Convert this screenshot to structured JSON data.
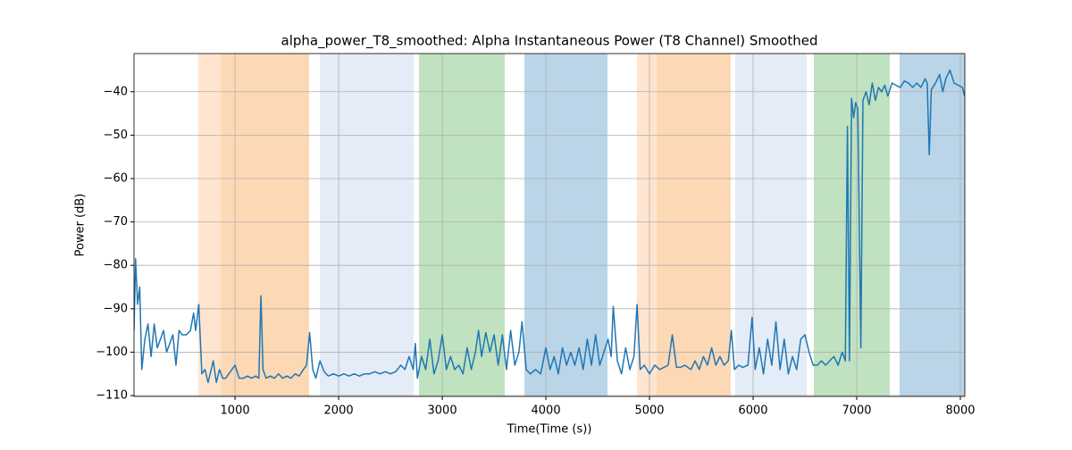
{
  "chart_data": {
    "type": "line",
    "title": "alpha_power_T8_smoothed: Alpha Instantaneous Power (T8 Channel) Smoothed",
    "xlabel": "Time(Time (s))",
    "ylabel": "Power (dB)",
    "xlim": [
      25,
      8043
    ],
    "ylim": [
      -110.2,
      -31.2
    ],
    "xticks": [
      1000,
      2000,
      3000,
      4000,
      5000,
      6000,
      7000,
      8000
    ],
    "yticks": [
      {
        "value": -40,
        "label": "−40"
      },
      {
        "value": -50,
        "label": "−50"
      },
      {
        "value": -60,
        "label": "−60"
      },
      {
        "value": -70,
        "label": "−70"
      },
      {
        "value": -80,
        "label": "−80"
      },
      {
        "value": -90,
        "label": "−90"
      },
      {
        "value": -100,
        "label": "−100"
      },
      {
        "value": -110,
        "label": "−110"
      }
    ],
    "grid": true,
    "spans": [
      {
        "start": 647,
        "end": 862,
        "color": "#ffe5cf"
      },
      {
        "start": 862,
        "end": 1715,
        "color": "#fdd8b5"
      },
      {
        "start": 1819,
        "end": 2724,
        "color": "#e4ecf7"
      },
      {
        "start": 2776,
        "end": 3603,
        "color": "#c0e2c0"
      },
      {
        "start": 3793,
        "end": 4595,
        "color": "#bad5e8"
      },
      {
        "start": 4879,
        "end": 5069,
        "color": "#ffe5cf"
      },
      {
        "start": 5069,
        "end": 5784,
        "color": "#fdd8b5"
      },
      {
        "start": 5828,
        "end": 6517,
        "color": "#e4ecf7"
      },
      {
        "start": 6586,
        "end": 7319,
        "color": "#c0e2c0"
      },
      {
        "start": 7414,
        "end": 8043,
        "color": "#bad5e8"
      }
    ],
    "x": [
      25,
      40,
      60,
      80,
      100,
      130,
      160,
      190,
      220,
      250,
      280,
      310,
      340,
      370,
      400,
      430,
      460,
      490,
      530,
      570,
      600,
      620,
      650,
      680,
      710,
      740,
      760,
      790,
      820,
      850,
      880,
      910,
      940,
      970,
      1000,
      1040,
      1080,
      1120,
      1160,
      1200,
      1230,
      1250,
      1270,
      1300,
      1340,
      1380,
      1420,
      1460,
      1500,
      1540,
      1580,
      1620,
      1660,
      1690,
      1720,
      1750,
      1780,
      1820,
      1860,
      1900,
      1950,
      2000,
      2050,
      2100,
      2150,
      2200,
      2250,
      2300,
      2350,
      2400,
      2450,
      2500,
      2550,
      2600,
      2640,
      2680,
      2720,
      2740,
      2760,
      2800,
      2840,
      2880,
      2920,
      2960,
      3000,
      3040,
      3080,
      3120,
      3160,
      3200,
      3240,
      3280,
      3320,
      3350,
      3380,
      3420,
      3460,
      3500,
      3540,
      3580,
      3620,
      3660,
      3700,
      3740,
      3770,
      3810,
      3850,
      3900,
      3950,
      4000,
      4040,
      4080,
      4120,
      4160,
      4200,
      4240,
      4280,
      4320,
      4360,
      4400,
      4440,
      4480,
      4520,
      4560,
      4600,
      4630,
      4650,
      4690,
      4730,
      4770,
      4810,
      4850,
      4880,
      4910,
      4950,
      5000,
      5050,
      5100,
      5140,
      5180,
      5220,
      5260,
      5300,
      5340,
      5400,
      5440,
      5480,
      5520,
      5560,
      5600,
      5640,
      5680,
      5720,
      5760,
      5790,
      5820,
      5860,
      5900,
      5950,
      5990,
      6020,
      6060,
      6100,
      6140,
      6180,
      6220,
      6260,
      6300,
      6340,
      6380,
      6420,
      6460,
      6500,
      6540,
      6580,
      6620,
      6660,
      6700,
      6740,
      6780,
      6820,
      6860,
      6890,
      6910,
      6930,
      6950,
      6970,
      6990,
      7010,
      7040,
      7060,
      7090,
      7120,
      7150,
      7180,
      7210,
      7240,
      7270,
      7300,
      7340,
      7380,
      7420,
      7460,
      7500,
      7540,
      7580,
      7620,
      7660,
      7680,
      7700,
      7720,
      7760,
      7800,
      7830,
      7860,
      7900,
      7940,
      7980,
      8020,
      8040
    ],
    "series": [
      {
        "color": "#1f77b4",
        "values": [
          -95,
          -78.5,
          -89,
          -85,
          -104,
          -97,
          -93.5,
          -101,
          -93.5,
          -99,
          -97,
          -95,
          -100,
          -98,
          -96,
          -103,
          -95,
          -96,
          -96,
          -95,
          -91,
          -95,
          -89,
          -105,
          -104,
          -107,
          -105,
          -102,
          -107,
          -104,
          -106,
          -106,
          -105,
          -104,
          -103,
          -106,
          -106,
          -105.5,
          -106,
          -105.5,
          -106,
          -87,
          -104,
          -106,
          -105.5,
          -106,
          -105,
          -106,
          -105.5,
          -106,
          -105,
          -105.5,
          -104,
          -103,
          -95.5,
          -104,
          -106,
          -102,
          -104.5,
          -105.5,
          -105,
          -105.5,
          -105,
          -105.5,
          -105,
          -105.5,
          -105,
          -105,
          -104.5,
          -105,
          -104.5,
          -105,
          -104.5,
          -103,
          -104,
          -101,
          -104,
          -98,
          -106,
          -101,
          -104,
          -97,
          -105,
          -102,
          -96,
          -104,
          -101,
          -104,
          -103,
          -105,
          -99,
          -104,
          -100,
          -95,
          -101,
          -95.5,
          -100,
          -96,
          -103,
          -96,
          -104,
          -95,
          -103,
          -100,
          -93,
          -104,
          -105,
          -104,
          -105,
          -99,
          -104,
          -101,
          -105,
          -99,
          -103,
          -100,
          -103,
          -99,
          -104,
          -97,
          -103,
          -96,
          -103,
          -100,
          -97,
          -101,
          -89.5,
          -102,
          -105,
          -99,
          -104,
          -101,
          -89,
          -104,
          -103,
          -105,
          -103,
          -104,
          -103.5,
          -103,
          -96,
          -103.5,
          -103.5,
          -103,
          -104,
          -102,
          -104,
          -101,
          -103,
          -99,
          -103,
          -101,
          -103,
          -102,
          -95,
          -104,
          -103,
          -103.5,
          -103,
          -92,
          -104,
          -99,
          -105,
          -97,
          -103,
          -93,
          -104,
          -97,
          -105,
          -101,
          -104,
          -97,
          -96,
          -100,
          -103,
          -103,
          -102,
          -103,
          -102,
          -101,
          -103,
          -100,
          -102,
          -48,
          -102,
          -41.5,
          -46,
          -42.5,
          -44,
          -99,
          -42,
          -40,
          -43,
          -38,
          -42,
          -39,
          -40,
          -38.5,
          -41,
          -38,
          -38.5,
          -39,
          -37.5,
          -38,
          -39,
          -38,
          -39,
          -37,
          -38,
          -54.5,
          -39.5,
          -38,
          -36,
          -40,
          -37,
          -35,
          -38,
          -38.5,
          -39,
          -41
        ]
      }
    ]
  }
}
